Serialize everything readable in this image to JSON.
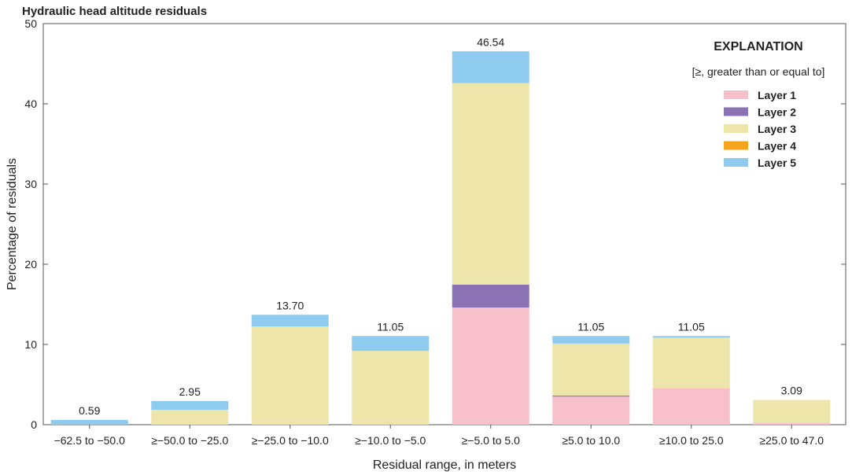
{
  "chart_data": {
    "type": "bar",
    "stacked": true,
    "title": "Hydraulic head altitude residuals",
    "xlabel": "Residual range, in meters",
    "ylabel": "Percentage of residuals",
    "ylim": [
      0,
      50
    ],
    "yticks": [
      0,
      10,
      20,
      30,
      40,
      50
    ],
    "grid": false,
    "legend_placement": "top-right",
    "legend_title": "EXPLANATION",
    "legend_note": "[≥, greater than or equal to]",
    "categories": [
      "−62.5 to −50.0",
      "≥−50.0 to −25.0",
      "≥−25.0 to −10.0",
      "≥−10.0 to −5.0",
      "≥−5.0 to 5.0",
      "≥5.0 to 10.0",
      "≥10.0 to 25.0",
      "≥25.0 to 47.0"
    ],
    "totals": [
      "0.59",
      "2.95",
      "13.70",
      "11.05",
      "46.54",
      "11.05",
      "11.05",
      "3.09"
    ],
    "series": [
      {
        "name": "Layer 1",
        "color": "#f8c0cb",
        "values": [
          0,
          0,
          0,
          0,
          14.6,
          3.5,
          4.57,
          0.2
        ]
      },
      {
        "name": "Layer 2",
        "color": "#8a72b4",
        "values": [
          0,
          0,
          0,
          0,
          2.85,
          0.12,
          0,
          0
        ]
      },
      {
        "name": "Layer 3",
        "color": "#ede5aa",
        "values": [
          0,
          1.86,
          12.25,
          9.2,
          25.15,
          6.5,
          6.28,
          2.89
        ]
      },
      {
        "name": "Layer 4",
        "color": "#f9a51c",
        "values": [
          0,
          0,
          0,
          0,
          0,
          0,
          0,
          0
        ]
      },
      {
        "name": "Layer 5",
        "color": "#8ecbef",
        "values": [
          0.59,
          1.09,
          1.45,
          1.85,
          3.94,
          0.93,
          0.2,
          0
        ]
      }
    ]
  }
}
